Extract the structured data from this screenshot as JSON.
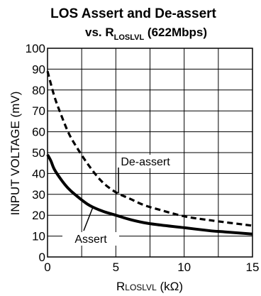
{
  "chart_data": {
    "type": "line",
    "title_line1": "LOS Assert and De-assert",
    "title_line2_prefix": "vs. R",
    "title_line2_sub": "LOSLVL",
    "title_line2_suffix": " (622Mbps)",
    "ylabel": "INPUT VOLTAGE (mV)",
    "xlabel_prefix": "R",
    "xlabel_sub": "LOSLVL",
    "xlabel_suffix": " (kΩ)",
    "xlim": [
      0,
      15
    ],
    "ylim": [
      0,
      100
    ],
    "x_ticks": [
      "0",
      "5",
      "10",
      "15"
    ],
    "y_ticks": [
      "0",
      "10",
      "20",
      "30",
      "40",
      "50",
      "60",
      "70",
      "80",
      "90",
      "100"
    ],
    "grid": true,
    "series": [
      {
        "name": "Assert",
        "style": "solid",
        "color": "#000000",
        "x": [
          0,
          0.25,
          0.5,
          1,
          1.5,
          2,
          3,
          4,
          5,
          6,
          7,
          8,
          10,
          12,
          13,
          15
        ],
        "y": [
          49,
          46,
          42,
          37,
          33,
          30,
          25,
          22,
          20,
          18,
          16.5,
          15.5,
          14,
          12.5,
          12,
          11
        ]
      },
      {
        "name": "De-assert",
        "style": "dashed",
        "color": "#000000",
        "x": [
          0,
          0.5,
          1,
          1.5,
          2,
          3,
          4,
          5,
          6,
          7,
          8,
          10,
          12,
          15
        ],
        "y": [
          89,
          77,
          68,
          60,
          54,
          44,
          36,
          31,
          28,
          25,
          23,
          19.5,
          17.5,
          15
        ]
      }
    ],
    "annotations": [
      {
        "text": "De-assert",
        "target_series": "De-assert"
      },
      {
        "text": "Assert",
        "target_series": "Assert"
      }
    ]
  }
}
